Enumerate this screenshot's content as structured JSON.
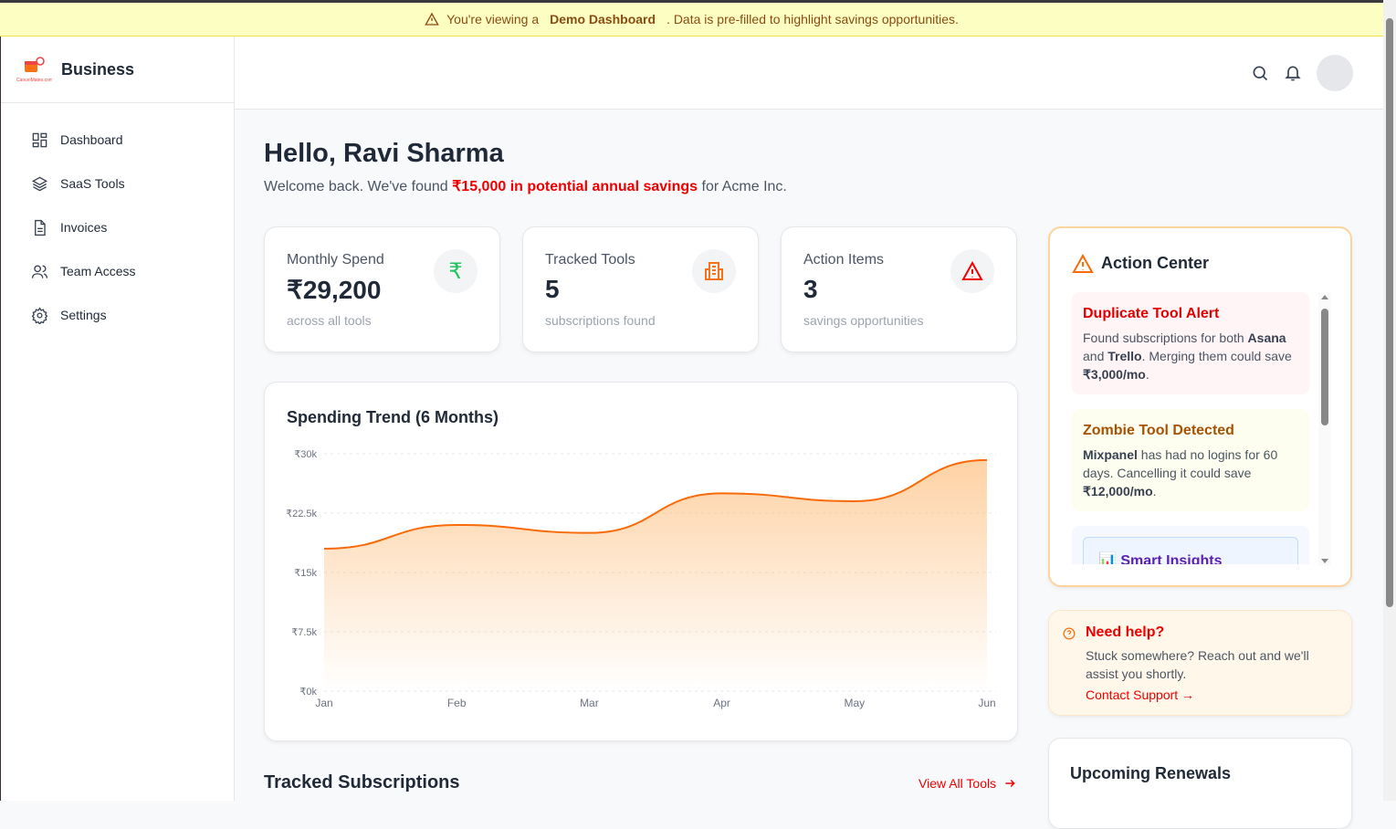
{
  "banner": {
    "pre": "You're viewing a",
    "bold": "Demo Dashboard",
    "post": ". Data is pre-filled to highlight savings opportunities."
  },
  "brand": {
    "name": "Business",
    "logo_text": "CancelMates.com"
  },
  "sidebar": {
    "items": [
      {
        "label": "Dashboard",
        "icon": "grid-icon"
      },
      {
        "label": "SaaS Tools",
        "icon": "layers-icon"
      },
      {
        "label": "Invoices",
        "icon": "document-icon"
      },
      {
        "label": "Team Access",
        "icon": "users-icon"
      },
      {
        "label": "Settings",
        "icon": "gear-icon"
      }
    ]
  },
  "greeting": {
    "title": "Hello, Ravi Sharma",
    "pre": "Welcome back. We've found ",
    "highlight": "₹15,000 in potential annual savings",
    "post": " for Acme Inc."
  },
  "stats": [
    {
      "label": "Monthly Spend",
      "value": "₹29,200",
      "sub": "across all tools",
      "icon": "rupee-icon",
      "color": "#22c55e"
    },
    {
      "label": "Tracked Tools",
      "value": "5",
      "sub": "subscriptions found",
      "icon": "building-icon",
      "color": "#f97316"
    },
    {
      "label": "Action Items",
      "value": "3",
      "sub": "savings opportunities",
      "icon": "warning-icon",
      "color": "#ef0000"
    }
  ],
  "chart_data": {
    "type": "area",
    "title": "Spending Trend (6 Months)",
    "categories": [
      "Jan",
      "Feb",
      "Mar",
      "Apr",
      "May",
      "Jun"
    ],
    "values": [
      18000,
      21000,
      20000,
      25000,
      24000,
      29200
    ],
    "ylim": [
      0,
      30000
    ],
    "yticks": [
      "₹0k",
      "₹7.5k",
      "₹15k",
      "₹22.5k",
      "₹30k"
    ],
    "ytick_values": [
      0,
      7500,
      15000,
      22500,
      30000
    ],
    "grid": true,
    "color": "#f96a0a"
  },
  "action_center": {
    "title": "Action Center",
    "alerts": [
      {
        "title": "Duplicate Tool Alert",
        "t1": "Found subscriptions for both ",
        "b1": "Asana",
        "t2": " and ",
        "b2": "Trello",
        "t3": ". Merging them could save ",
        "b3": "₹3,000/mo",
        "t4": "."
      },
      {
        "title": "Zombie Tool Detected",
        "b1": "Mixpanel",
        "t1": " has had no logins for 60 days. Cancelling it could save ",
        "b2": "₹12,000/mo",
        "t2": "."
      }
    ],
    "insights_title": "Smart Insights"
  },
  "help": {
    "title": "Need help?",
    "text": "Stuck somewhere? Reach out and we'll assist you shortly.",
    "link": "Contact Support →"
  },
  "renewals": {
    "title": "Upcoming Renewals"
  },
  "subscriptions": {
    "title": "Tracked Subscriptions",
    "link": "View All Tools"
  }
}
